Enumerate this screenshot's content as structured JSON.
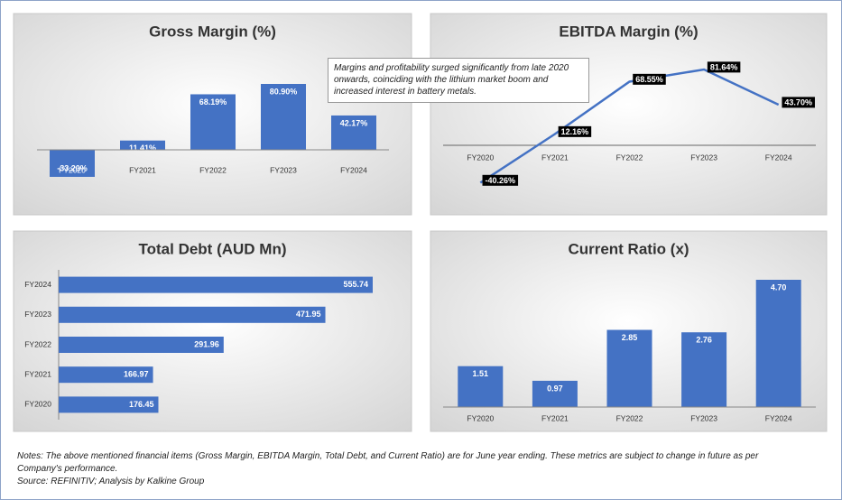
{
  "chart_data": [
    {
      "type": "bar",
      "title": "Gross Margin (%)",
      "categories": [
        "FY2020",
        "FY2021",
        "FY2022",
        "FY2023",
        "FY2024"
      ],
      "values": [
        -33.2,
        11.41,
        68.19,
        80.9,
        42.17
      ],
      "value_labels": [
        "-33.20%",
        "11.41%",
        "68.19%",
        "80.90%",
        "42.17%"
      ],
      "color": "#4472c4"
    },
    {
      "type": "line",
      "title": "EBITDA Margin (%)",
      "categories": [
        "FY2020",
        "FY2021",
        "FY2022",
        "FY2023",
        "FY2024"
      ],
      "values": [
        -40.26,
        12.16,
        68.55,
        81.64,
        43.7
      ],
      "value_labels": [
        "-40.26%",
        "12.16%",
        "68.55%",
        "81.64%",
        "43.70%"
      ],
      "color": "#4472c4",
      "annotation": "Margins and profitability surged significantly from late 2020 onwards, coinciding with the lithium market boom and increased interest in battery metals."
    },
    {
      "type": "hbar",
      "title": "Total Debt (AUD Mn)",
      "categories": [
        "FY2020",
        "FY2021",
        "FY2022",
        "FY2023",
        "FY2024"
      ],
      "values": [
        176.45,
        166.97,
        291.96,
        471.95,
        555.74
      ],
      "color": "#4472c4"
    },
    {
      "type": "bar",
      "title": "Current Ratio (x)",
      "categories": [
        "FY2020",
        "FY2021",
        "FY2022",
        "FY2023",
        "FY2024"
      ],
      "values": [
        1.51,
        0.97,
        2.85,
        2.76,
        4.7
      ],
      "value_labels": [
        "1.51",
        "0.97",
        "2.85",
        "2.76",
        "4.70"
      ],
      "color": "#4472c4"
    }
  ],
  "notes": "Notes: The above mentioned financial items (Gross Margin, EBITDA Margin, Total Debt, and Current Ratio) are for June year ending. These metrics are subject to change in future as per Company's performance.",
  "source": "Source: REFINITIV; Analysis by Kalkine Group"
}
